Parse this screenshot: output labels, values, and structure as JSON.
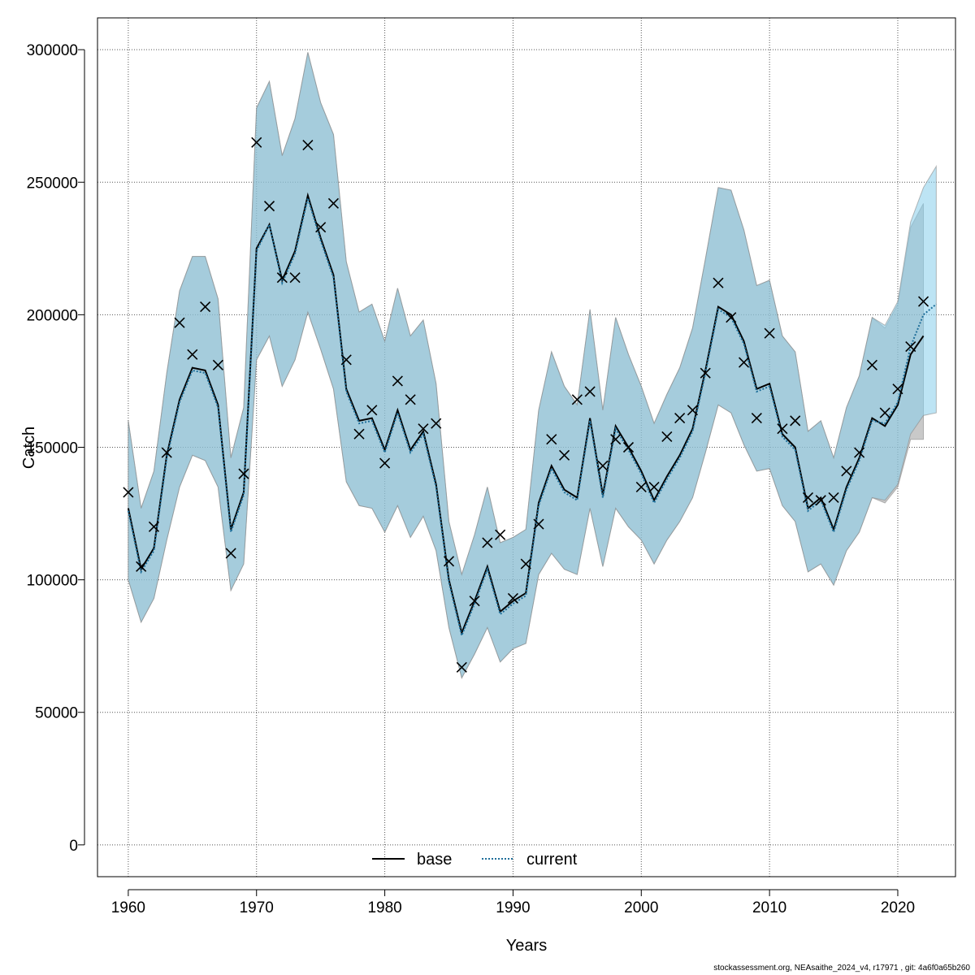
{
  "chart_data": {
    "type": "line",
    "title": "",
    "xlabel": "Years",
    "ylabel": "Catch",
    "xlim": [
      1957.6,
      2024.5
    ],
    "ylim": [
      -12000,
      312000
    ],
    "grid": true,
    "legend_position": "bottom-center",
    "x_ticks": [
      "1960",
      "1970",
      "1980",
      "1990",
      "2000",
      "2010",
      "2020"
    ],
    "y_ticks": [
      "0",
      "50000",
      "100000",
      "150000",
      "200000",
      "250000",
      "300000"
    ],
    "legend": [
      {
        "name": "base",
        "line": "solid",
        "color": "#000000"
      },
      {
        "name": "current",
        "line": "dotted",
        "color": "#1f6f9a"
      }
    ],
    "series": [
      {
        "name": "base",
        "color": "#000000",
        "band_color": "#9c9c9c",
        "x": [
          1960,
          1961,
          1962,
          1963,
          1964,
          1965,
          1966,
          1967,
          1968,
          1969,
          1970,
          1971,
          1972,
          1973,
          1974,
          1975,
          1976,
          1977,
          1978,
          1979,
          1980,
          1981,
          1982,
          1983,
          1984,
          1985,
          1986,
          1987,
          1988,
          1989,
          1990,
          1991,
          1992,
          1993,
          1994,
          1995,
          1996,
          1997,
          1998,
          1999,
          2000,
          2001,
          2002,
          2003,
          2004,
          2005,
          2006,
          2007,
          2008,
          2009,
          2010,
          2011,
          2012,
          2013,
          2014,
          2015,
          2016,
          2017,
          2018,
          2019,
          2020,
          2021,
          2022
        ],
        "estimate": [
          127000,
          104000,
          112000,
          147000,
          168000,
          180000,
          179000,
          166000,
          119000,
          133000,
          225000,
          234000,
          213000,
          224000,
          245000,
          229000,
          215000,
          172000,
          160000,
          161000,
          149000,
          164000,
          149000,
          156000,
          136000,
          100000,
          80000,
          92000,
          105000,
          88000,
          92000,
          95000,
          129000,
          143000,
          134000,
          131000,
          161000,
          132000,
          158000,
          150000,
          141000,
          130000,
          139000,
          147000,
          157000,
          179000,
          203000,
          200000,
          190000,
          172000,
          174000,
          155000,
          150000,
          127000,
          131000,
          119000,
          135000,
          146000,
          161000,
          158000,
          166000,
          185000,
          192000
        ],
        "lower": [
          100000,
          84000,
          93000,
          115000,
          135000,
          147000,
          145000,
          135000,
          96000,
          106000,
          183000,
          192000,
          173000,
          183000,
          201000,
          187000,
          172000,
          137000,
          128000,
          127000,
          118000,
          128000,
          116000,
          124000,
          111000,
          82000,
          63000,
          72000,
          82000,
          69000,
          74000,
          76000,
          102000,
          110000,
          104000,
          102000,
          127000,
          105000,
          127000,
          120000,
          115000,
          106000,
          115000,
          122000,
          131000,
          148000,
          166000,
          163000,
          151000,
          141000,
          142000,
          128000,
          122000,
          103000,
          106000,
          98000,
          111000,
          118000,
          131000,
          129000,
          135000,
          153000,
          153000
        ],
        "upper": [
          160000,
          127000,
          141000,
          178000,
          209000,
          222000,
          222000,
          206000,
          146000,
          165000,
          278000,
          288000,
          260000,
          274000,
          299000,
          280000,
          268000,
          220000,
          201000,
          204000,
          190000,
          210000,
          192000,
          198000,
          174000,
          122000,
          102000,
          117000,
          135000,
          114000,
          116000,
          119000,
          164000,
          186000,
          173000,
          166000,
          202000,
          164000,
          199000,
          185000,
          173000,
          159000,
          170000,
          180000,
          195000,
          221000,
          248000,
          247000,
          232000,
          211000,
          213000,
          192000,
          186000,
          156000,
          160000,
          146000,
          165000,
          177000,
          199000,
          195000,
          204000,
          233000,
          242000
        ]
      },
      {
        "name": "current",
        "color": "#1f6f9a",
        "band_color": "#87ceeb",
        "x": [
          1960,
          1961,
          1962,
          1963,
          1964,
          1965,
          1966,
          1967,
          1968,
          1969,
          1970,
          1971,
          1972,
          1973,
          1974,
          1975,
          1976,
          1977,
          1978,
          1979,
          1980,
          1981,
          1982,
          1983,
          1984,
          1985,
          1986,
          1987,
          1988,
          1989,
          1990,
          1991,
          1992,
          1993,
          1994,
          1995,
          1996,
          1997,
          1998,
          1999,
          2000,
          2001,
          2002,
          2003,
          2004,
          2005,
          2006,
          2007,
          2008,
          2009,
          2010,
          2011,
          2012,
          2013,
          2014,
          2015,
          2016,
          2017,
          2018,
          2019,
          2020,
          2021,
          2022,
          2023
        ],
        "estimate": [
          126000,
          103000,
          111000,
          146000,
          167000,
          179000,
          178000,
          165000,
          118000,
          132000,
          224000,
          234000,
          212000,
          223000,
          244000,
          228000,
          214000,
          171000,
          159000,
          160000,
          148000,
          163000,
          148000,
          155000,
          135000,
          99000,
          79000,
          91000,
          104000,
          87000,
          91000,
          94000,
          128000,
          142000,
          133000,
          130000,
          160000,
          131000,
          157000,
          149000,
          140000,
          129000,
          138000,
          146000,
          156000,
          178000,
          202000,
          199000,
          189000,
          171000,
          173000,
          154000,
          149000,
          126000,
          130000,
          118000,
          134000,
          145000,
          160000,
          159000,
          167000,
          188000,
          200000,
          204000
        ],
        "lower": [
          100000,
          84000,
          93000,
          115000,
          135000,
          147000,
          145000,
          135000,
          96000,
          106000,
          183000,
          192000,
          173000,
          183000,
          201000,
          187000,
          172000,
          137000,
          128000,
          127000,
          118000,
          128000,
          116000,
          124000,
          111000,
          82000,
          63000,
          72000,
          82000,
          69000,
          74000,
          76000,
          102000,
          110000,
          104000,
          102000,
          127000,
          105000,
          127000,
          120000,
          115000,
          106000,
          115000,
          122000,
          131000,
          148000,
          166000,
          163000,
          151000,
          141000,
          142000,
          128000,
          122000,
          103000,
          106000,
          98000,
          111000,
          118000,
          131000,
          130000,
          136000,
          155000,
          162000,
          163000
        ],
        "upper": [
          160000,
          127000,
          141000,
          178000,
          209000,
          222000,
          222000,
          206000,
          146000,
          165000,
          278000,
          288000,
          260000,
          274000,
          299000,
          280000,
          268000,
          220000,
          201000,
          204000,
          190000,
          210000,
          192000,
          198000,
          174000,
          122000,
          102000,
          117000,
          135000,
          114000,
          116000,
          119000,
          164000,
          186000,
          173000,
          166000,
          202000,
          164000,
          199000,
          185000,
          173000,
          159000,
          170000,
          180000,
          195000,
          221000,
          248000,
          247000,
          232000,
          211000,
          213000,
          192000,
          186000,
          156000,
          160000,
          146000,
          165000,
          177000,
          199000,
          196000,
          205000,
          235000,
          248000,
          256000
        ]
      }
    ],
    "observed": {
      "name": "observed catch",
      "marker": "x",
      "x": [
        1960,
        1961,
        1962,
        1963,
        1964,
        1965,
        1966,
        1967,
        1968,
        1969,
        1970,
        1971,
        1972,
        1973,
        1974,
        1975,
        1976,
        1977,
        1978,
        1979,
        1980,
        1981,
        1982,
        1983,
        1984,
        1985,
        1986,
        1987,
        1988,
        1989,
        1990,
        1991,
        1992,
        1993,
        1994,
        1995,
        1996,
        1997,
        1998,
        1999,
        2000,
        2001,
        2002,
        2003,
        2004,
        2005,
        2006,
        2007,
        2008,
        2009,
        2010,
        2011,
        2012,
        2013,
        2014,
        2015,
        2016,
        2017,
        2018,
        2019,
        2020,
        2021,
        2022
      ],
      "y": [
        133000,
        105000,
        120000,
        148000,
        197000,
        185000,
        203000,
        181000,
        110000,
        140000,
        265000,
        241000,
        214000,
        214000,
        264000,
        233000,
        242000,
        183000,
        155000,
        164000,
        144000,
        175000,
        168000,
        157000,
        159000,
        107000,
        67000,
        92000,
        114000,
        117000,
        93000,
        106000,
        121000,
        153000,
        147000,
        168000,
        171000,
        143000,
        153000,
        150000,
        135000,
        135000,
        154000,
        161000,
        164000,
        178000,
        212000,
        199000,
        182000,
        161000,
        193000,
        157000,
        160000,
        131000,
        130000,
        131000,
        141000,
        148000,
        181000,
        163000,
        172000,
        188000,
        205000
      ]
    }
  },
  "footer": {
    "credit": "stockassessment.org, NEAsaithe_2024_v4, r17971 , git: 4a6f0a65b260"
  }
}
